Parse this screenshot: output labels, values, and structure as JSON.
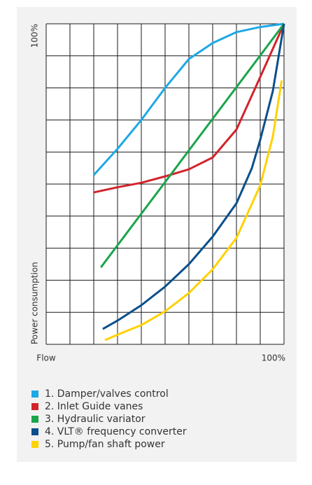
{
  "chart_data": {
    "type": "line",
    "xlabel": "Flow",
    "ylabel": "Power consumption",
    "xlim": [
      0,
      100
    ],
    "ylim": [
      0,
      100
    ],
    "xticks": [
      {
        "value": 100,
        "label": "100%"
      }
    ],
    "yticks": [
      {
        "value": 100,
        "label": "100%"
      }
    ],
    "xgrid": [
      0,
      10,
      20,
      30,
      40,
      50,
      60,
      70,
      80,
      90,
      100
    ],
    "ygrid": [
      0,
      10,
      20,
      30,
      40,
      50,
      60,
      70,
      80,
      90,
      100
    ],
    "grid": true,
    "series": [
      {
        "name": "1. Damper/valves control",
        "color": "#1ea8e6",
        "x": [
          20,
          30,
          40,
          50,
          60,
          70,
          80,
          90,
          100
        ],
        "values": [
          52.8,
          61,
          70,
          80,
          89,
          94,
          97.4,
          99,
          100
        ]
      },
      {
        "name": "2. Inlet Guide vanes",
        "color": "#d2232a",
        "x": [
          20,
          30,
          40,
          50,
          60,
          70,
          80,
          90,
          100
        ],
        "values": [
          47.4,
          49,
          50.4,
          52.4,
          54.6,
          58.3,
          67,
          83.4,
          100
        ]
      },
      {
        "name": "3. Hydraulic variator",
        "color": "#1aa54b",
        "x": [
          23,
          50,
          100
        ],
        "values": [
          24,
          50.6,
          100
        ]
      },
      {
        "name": "4. VLT® frequency converter",
        "color": "#0b4f8a",
        "x": [
          23.8,
          30,
          40,
          50,
          60,
          70,
          80,
          86.5,
          90,
          95.3,
          100
        ],
        "values": [
          4.8,
          7.4,
          12.2,
          18,
          25,
          33.6,
          44,
          55,
          63.8,
          79,
          100
        ]
      },
      {
        "name": "5. Pump/fan shaft power",
        "color": "#ffd200",
        "x": [
          24.7,
          30,
          40,
          50,
          60,
          70,
          80,
          90,
          95.3,
          99
        ],
        "values": [
          1.3,
          3,
          6,
          10.3,
          16,
          23.4,
          33.2,
          49.6,
          64.8,
          82.3
        ]
      }
    ]
  }
}
